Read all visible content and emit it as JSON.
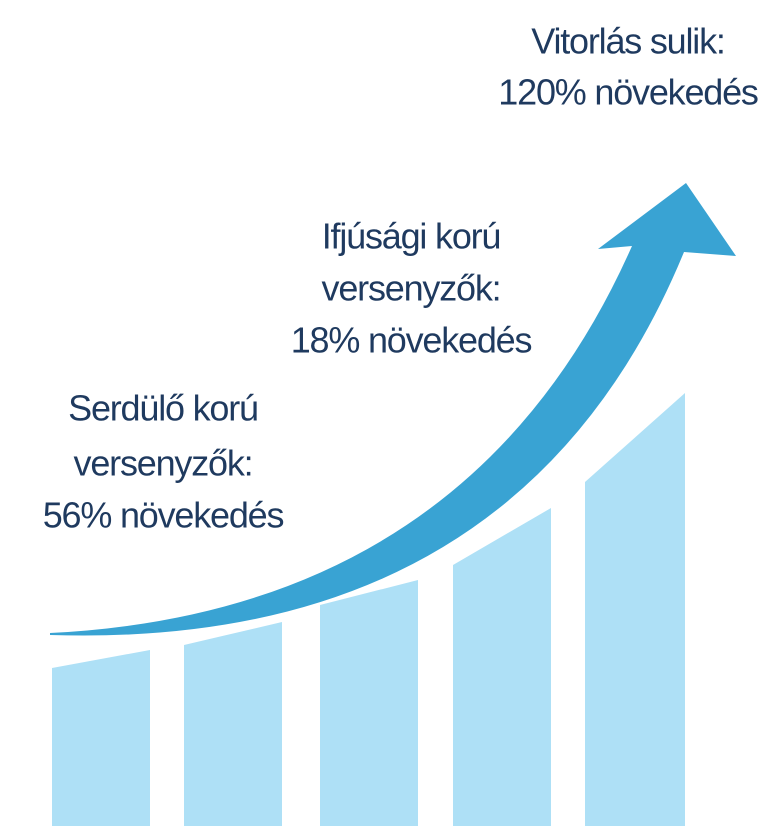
{
  "labels": [
    {
      "lines": [
        "Vitorlás sulik:",
        "120% növekedés"
      ]
    },
    {
      "lines": [
        "Ifjúsági korú",
        "versenyzők:",
        "18% növekedés"
      ]
    },
    {
      "lines": [
        "Serdülő korú",
        "versenyzők:",
        "56% növekedés"
      ]
    }
  ]
}
